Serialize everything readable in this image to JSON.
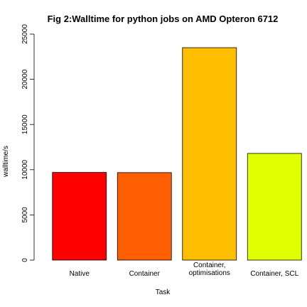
{
  "chart_data": {
    "type": "bar",
    "title": "Fig 2:Walltime for python jobs on AMD Opteron 6712",
    "xlabel": "Task",
    "ylabel": "walltime/s",
    "categories": [
      [
        "Native"
      ],
      [
        "Container"
      ],
      [
        "Container,",
        "optimisations"
      ],
      [
        "Container, SCL"
      ]
    ],
    "values": [
      9700,
      9680,
      23500,
      11800
    ],
    "colors": [
      "#ff0000",
      "#ff5f00",
      "#ffbf00",
      "#e0ff00"
    ],
    "ylim": [
      0,
      25000
    ],
    "yticks": [
      0,
      5000,
      10000,
      15000,
      20000,
      25000
    ],
    "grid": false,
    "legend": "none"
  }
}
